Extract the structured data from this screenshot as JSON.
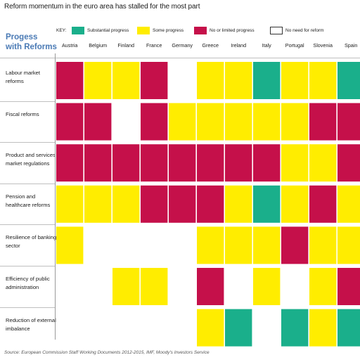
{
  "title": "Reform momentum in the euro area has stalled for the most part",
  "heading": [
    "Progess",
    "with Reforms"
  ],
  "key": {
    "label": "KEY:",
    "items": [
      {
        "id": "substantial",
        "label": "Substantial progress",
        "color": "#1aaf8b"
      },
      {
        "id": "some",
        "label": "Some progress",
        "color": "#ffed00"
      },
      {
        "id": "limited",
        "label": "No or limited progress",
        "color": "#c5104a"
      },
      {
        "id": "none",
        "label": "No need for reform",
        "color": "#ffffff"
      }
    ]
  },
  "chart_data": {
    "type": "heatmap",
    "title": "Reform momentum in the euro area has stalled for the most part",
    "columns": [
      "Austria",
      "Belgium",
      "Finland",
      "France",
      "Germany",
      "Greece",
      "Ireland",
      "Italy",
      "Portugal",
      "Slovenia",
      "Spain"
    ],
    "rows": [
      {
        "label": [
          "Labour market",
          "reforms"
        ],
        "values": [
          "limited",
          "some",
          "some",
          "limited",
          "none",
          "some",
          "some",
          "substantial",
          "some",
          "some",
          "substantial"
        ]
      },
      {
        "label": [
          "Fiscal reforms"
        ],
        "values": [
          "limited",
          "limited",
          "none",
          "limited",
          "some",
          "some",
          "some",
          "some",
          "some",
          "limited",
          "limited"
        ]
      },
      {
        "label": [
          "Product and services",
          "market regulations"
        ],
        "values": [
          "limited",
          "limited",
          "limited",
          "limited",
          "limited",
          "limited",
          "limited",
          "limited",
          "some",
          "some",
          "limited"
        ]
      },
      {
        "label": [
          "Pension and",
          "healthcare reforms"
        ],
        "values": [
          "some",
          "some",
          "some",
          "limited",
          "limited",
          "limited",
          "some",
          "substantial",
          "some",
          "limited",
          "some"
        ]
      },
      {
        "label": [
          "Resilience of banking",
          "sector"
        ],
        "values": [
          "some",
          "none",
          "none",
          "none",
          "none",
          "some",
          "some",
          "some",
          "limited",
          "some",
          "some"
        ]
      },
      {
        "label": [
          "Efficiency of public",
          "administration"
        ],
        "values": [
          "none",
          "none",
          "some",
          "some",
          "none",
          "limited",
          "none",
          "some",
          "none",
          "some",
          "limited"
        ]
      },
      {
        "label": [
          "Reduction of external",
          "imbalance"
        ],
        "values": [
          "none",
          "none",
          "none",
          "none",
          "none",
          "some",
          "substantial",
          "none",
          "substantial",
          "some",
          "substantial"
        ]
      }
    ]
  },
  "source": "Source: European Commission Staff Working Documents 2012-2015, IMF, Moody's Investors Service"
}
